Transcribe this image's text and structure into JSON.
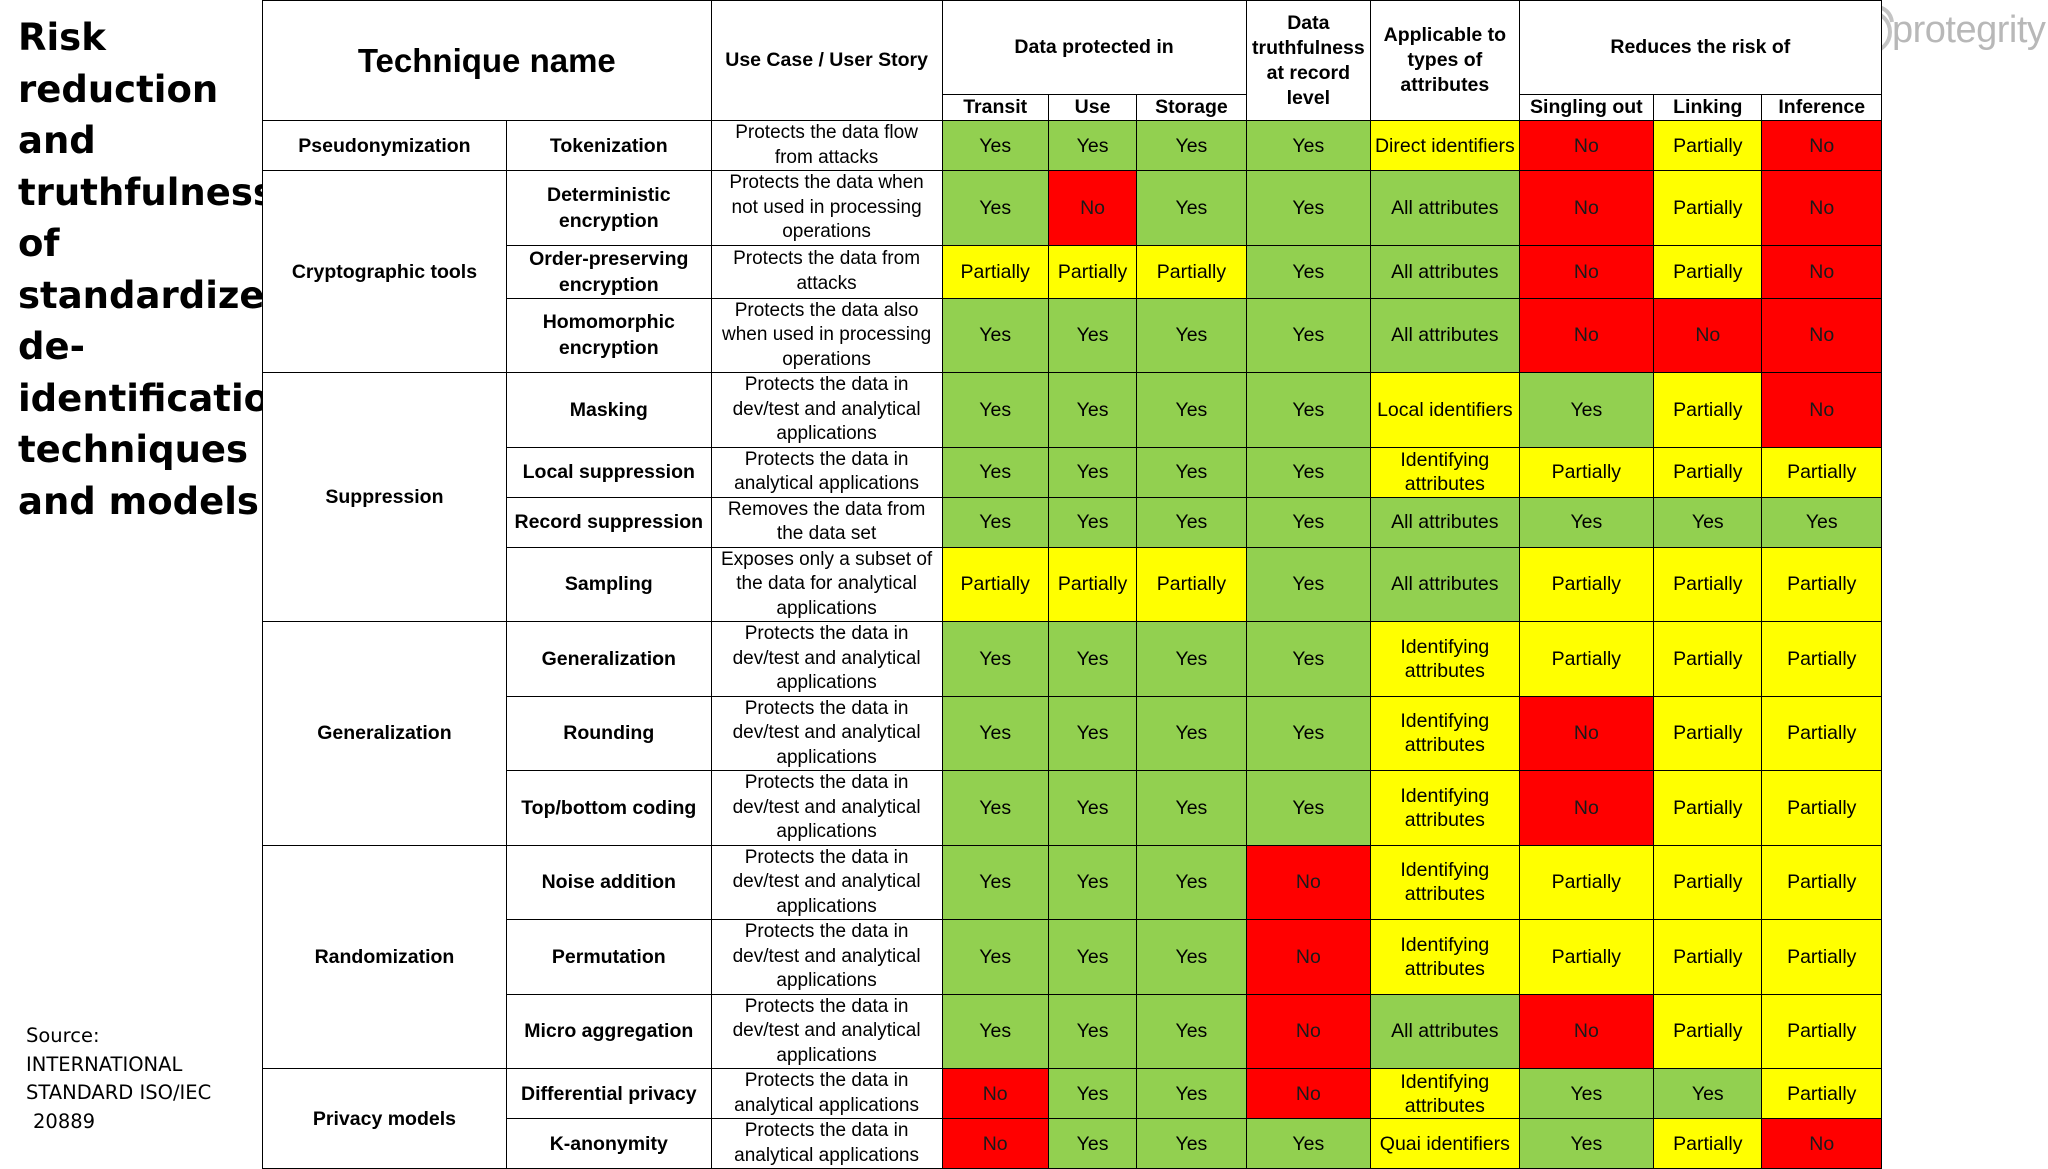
{
  "title": "Risk reduction and truthfulness of standardized de-identification techniques and models",
  "source": {
    "line1": "Source:",
    "line2": "INTERNATIONAL",
    "line3": "STANDARD ISO/IEC",
    "line4": "20889"
  },
  "logo": {
    "text": "protegrity",
    "icon": "protegrity-logo-icon"
  },
  "colors": {
    "yes": "#92d050",
    "partial": "#ffff00",
    "no": "#ff0000"
  },
  "headers": {
    "technique_name": "Technique name",
    "use_case": "Use Case / User Story",
    "data_protected": "Data protected in",
    "transit": "Transit",
    "use": "Use",
    "storage": "Storage",
    "truthfulness": "Data truthfulness at record level",
    "applicable": "Applicable to types of attributes",
    "reduces": "Reduces the risk of",
    "singling": "Singling out",
    "linking": "Linking",
    "inference": "Inference"
  },
  "groups": [
    {
      "name": "Pseudonymization",
      "rows": [
        {
          "technique": "Tokenization",
          "use_case": "Protects the data flow from attacks",
          "values": [
            [
              "Yes",
              "g"
            ],
            [
              "Yes",
              "g"
            ],
            [
              "Yes",
              "g"
            ],
            [
              "Yes",
              "g"
            ],
            [
              "Direct identifiers",
              "y"
            ],
            [
              "No",
              "r"
            ],
            [
              "Partially",
              "y"
            ],
            [
              "No",
              "r"
            ]
          ]
        }
      ]
    },
    {
      "name": "Cryptographic tools",
      "rows": [
        {
          "technique": "Deterministic encryption",
          "use_case": "Protects the data when not used in processing operations",
          "values": [
            [
              "Yes",
              "g"
            ],
            [
              "No",
              "r"
            ],
            [
              "Yes",
              "g"
            ],
            [
              "Yes",
              "g"
            ],
            [
              "All attributes",
              "g"
            ],
            [
              "No",
              "r"
            ],
            [
              "Partially",
              "y"
            ],
            [
              "No",
              "r"
            ]
          ]
        },
        {
          "technique": "Order-preserving encryption",
          "use_case": "Protects the data from attacks",
          "values": [
            [
              "Partially",
              "y"
            ],
            [
              "Partially",
              "y"
            ],
            [
              "Partially",
              "y"
            ],
            [
              "Yes",
              "g"
            ],
            [
              "All attributes",
              "g"
            ],
            [
              "No",
              "r"
            ],
            [
              "Partially",
              "y"
            ],
            [
              "No",
              "r"
            ]
          ]
        },
        {
          "technique": "Homomorphic encryption",
          "use_case": "Protects the data also when used in processing operations",
          "values": [
            [
              "Yes",
              "g"
            ],
            [
              "Yes",
              "g"
            ],
            [
              "Yes",
              "g"
            ],
            [
              "Yes",
              "g"
            ],
            [
              "All attributes",
              "g"
            ],
            [
              "No",
              "r"
            ],
            [
              "No",
              "r"
            ],
            [
              "No",
              "r"
            ]
          ]
        }
      ]
    },
    {
      "name": "Suppression",
      "rows": [
        {
          "technique": "Masking",
          "use_case": "Protects the data in dev/test and analytical applications",
          "values": [
            [
              "Yes",
              "g"
            ],
            [
              "Yes",
              "g"
            ],
            [
              "Yes",
              "g"
            ],
            [
              "Yes",
              "g"
            ],
            [
              "Local identifiers",
              "y"
            ],
            [
              "Yes",
              "g"
            ],
            [
              "Partially",
              "y"
            ],
            [
              "No",
              "r"
            ]
          ]
        },
        {
          "technique": "Local suppression",
          "use_case": "Protects the data in analytical applications",
          "values": [
            [
              "Yes",
              "g"
            ],
            [
              "Yes",
              "g"
            ],
            [
              "Yes",
              "g"
            ],
            [
              "Yes",
              "g"
            ],
            [
              "Identifying attributes",
              "y"
            ],
            [
              "Partially",
              "y"
            ],
            [
              "Partially",
              "y"
            ],
            [
              "Partially",
              "y"
            ]
          ]
        },
        {
          "technique": "Record suppression",
          "use_case": "Removes the data from the data set",
          "values": [
            [
              "Yes",
              "g"
            ],
            [
              "Yes",
              "g"
            ],
            [
              "Yes",
              "g"
            ],
            [
              "Yes",
              "g"
            ],
            [
              "All attributes",
              "g"
            ],
            [
              "Yes",
              "g"
            ],
            [
              "Yes",
              "g"
            ],
            [
              "Yes",
              "g"
            ]
          ]
        },
        {
          "technique": "Sampling",
          "use_case": "Exposes only a subset of the data for analytical applications",
          "values": [
            [
              "Partially",
              "y"
            ],
            [
              "Partially",
              "y"
            ],
            [
              "Partially",
              "y"
            ],
            [
              "Yes",
              "g"
            ],
            [
              "All attributes",
              "g"
            ],
            [
              "Partially",
              "y"
            ],
            [
              "Partially",
              "y"
            ],
            [
              "Partially",
              "y"
            ]
          ]
        }
      ]
    },
    {
      "name": "Generalization",
      "rows": [
        {
          "technique": "Generalization",
          "use_case": "Protects the data in dev/test and analytical applications",
          "values": [
            [
              "Yes",
              "g"
            ],
            [
              "Yes",
              "g"
            ],
            [
              "Yes",
              "g"
            ],
            [
              "Yes",
              "g"
            ],
            [
              "Identifying attributes",
              "y"
            ],
            [
              "Partially",
              "y"
            ],
            [
              "Partially",
              "y"
            ],
            [
              "Partially",
              "y"
            ]
          ]
        },
        {
          "technique": "Rounding",
          "use_case": "Protects the data in dev/test and analytical applications",
          "values": [
            [
              "Yes",
              "g"
            ],
            [
              "Yes",
              "g"
            ],
            [
              "Yes",
              "g"
            ],
            [
              "Yes",
              "g"
            ],
            [
              "Identifying attributes",
              "y"
            ],
            [
              "No",
              "r"
            ],
            [
              "Partially",
              "y"
            ],
            [
              "Partially",
              "y"
            ]
          ]
        },
        {
          "technique": "Top/bottom coding",
          "use_case": "Protects the data in dev/test and analytical applications",
          "values": [
            [
              "Yes",
              "g"
            ],
            [
              "Yes",
              "g"
            ],
            [
              "Yes",
              "g"
            ],
            [
              "Yes",
              "g"
            ],
            [
              "Identifying attributes",
              "y"
            ],
            [
              "No",
              "r"
            ],
            [
              "Partially",
              "y"
            ],
            [
              "Partially",
              "y"
            ]
          ]
        }
      ]
    },
    {
      "name": "Randomization",
      "rows": [
        {
          "technique": "Noise addition",
          "use_case": "Protects the data in dev/test and analytical applications",
          "values": [
            [
              "Yes",
              "g"
            ],
            [
              "Yes",
              "g"
            ],
            [
              "Yes",
              "g"
            ],
            [
              "No",
              "r"
            ],
            [
              "Identifying attributes",
              "y"
            ],
            [
              "Partially",
              "y"
            ],
            [
              "Partially",
              "y"
            ],
            [
              "Partially",
              "y"
            ]
          ]
        },
        {
          "technique": "Permutation",
          "use_case": "Protects the data in dev/test and analytical applications",
          "values": [
            [
              "Yes",
              "g"
            ],
            [
              "Yes",
              "g"
            ],
            [
              "Yes",
              "g"
            ],
            [
              "No",
              "r"
            ],
            [
              "Identifying attributes",
              "y"
            ],
            [
              "Partially",
              "y"
            ],
            [
              "Partially",
              "y"
            ],
            [
              "Partially",
              "y"
            ]
          ]
        },
        {
          "technique": "Micro aggregation",
          "use_case": "Protects the data in dev/test and analytical applications",
          "values": [
            [
              "Yes",
              "g"
            ],
            [
              "Yes",
              "g"
            ],
            [
              "Yes",
              "g"
            ],
            [
              "No",
              "r"
            ],
            [
              "All attributes",
              "g"
            ],
            [
              "No",
              "r"
            ],
            [
              "Partially",
              "y"
            ],
            [
              "Partially",
              "y"
            ]
          ]
        }
      ]
    },
    {
      "name": "Privacy models",
      "rows": [
        {
          "technique": "Differential privacy",
          "use_case": "Protects the data in analytical applications",
          "values": [
            [
              "No",
              "r"
            ],
            [
              "Yes",
              "g"
            ],
            [
              "Yes",
              "g"
            ],
            [
              "No",
              "r"
            ],
            [
              "Identifying attributes",
              "y"
            ],
            [
              "Yes",
              "g"
            ],
            [
              "Yes",
              "g"
            ],
            [
              "Partially",
              "y"
            ]
          ]
        },
        {
          "technique": "K-anonymity",
          "use_case": "Protects the data in analytical applications",
          "values": [
            [
              "No",
              "r"
            ],
            [
              "Yes",
              "g"
            ],
            [
              "Yes",
              "g"
            ],
            [
              "Yes",
              "g"
            ],
            [
              "Quai identifiers",
              "y"
            ],
            [
              "Yes",
              "g"
            ],
            [
              "Partially",
              "y"
            ],
            [
              "No",
              "r"
            ]
          ]
        }
      ]
    }
  ]
}
